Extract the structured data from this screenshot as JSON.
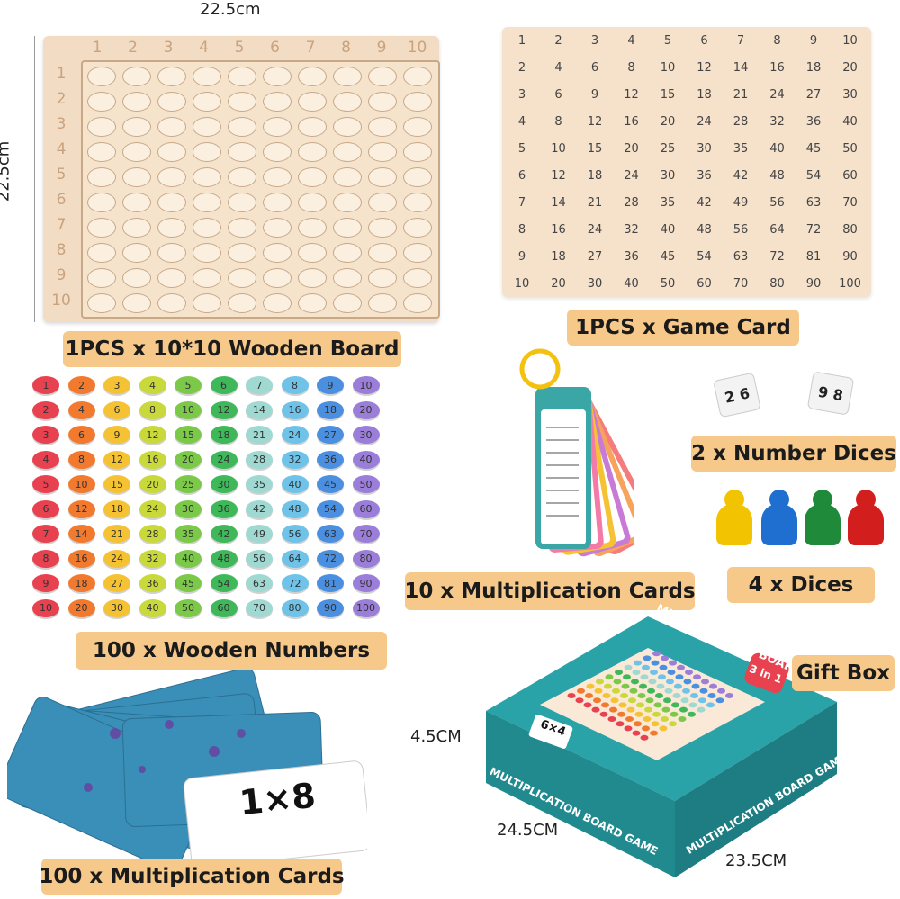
{
  "dimensions": {
    "board_width": "22.5cm",
    "board_height": "22.5cm",
    "box_height": "4.5CM",
    "box_width": "24.5CM",
    "box_depth": "23.5CM"
  },
  "labels": {
    "wooden_board": "1PCS x 10*10 Wooden Board",
    "game_card": "1PCS x Game Card",
    "number_dices": "2 x Number Dices",
    "dices": "4 x Dices",
    "multiplication_cards_10": "10 x Multiplication Cards",
    "wooden_numbers": "100 x Wooden Numbers",
    "gift_box": "Gift Box",
    "multiplication_cards_100": "100 x Multiplication Cards"
  },
  "flashcard": {
    "text": "1×8"
  },
  "box": {
    "title": "MULTIPLICATION BOARD GAME",
    "badge": "3 in 1",
    "card": "6×4"
  },
  "dice_faces": [
    "2 6",
    "9 8"
  ],
  "colors": {
    "label_bg": "#f6c98a",
    "board_wood": "#f2ddc4",
    "box_teal": "#2aa3a8",
    "card_blue": "#3a8fb8"
  },
  "pawn_colors": [
    "#f2c300",
    "#1f6fd1",
    "#1f8a3a",
    "#d31e1e"
  ],
  "chip_row_colors": [
    "#e8414f",
    "#f27a2e",
    "#f5c233",
    "#c9d83a",
    "#7cc94a",
    "#3fb85a",
    "#9fd9d2",
    "#6fc2e8",
    "#4a8fe0",
    "#9a7ed9"
  ]
}
